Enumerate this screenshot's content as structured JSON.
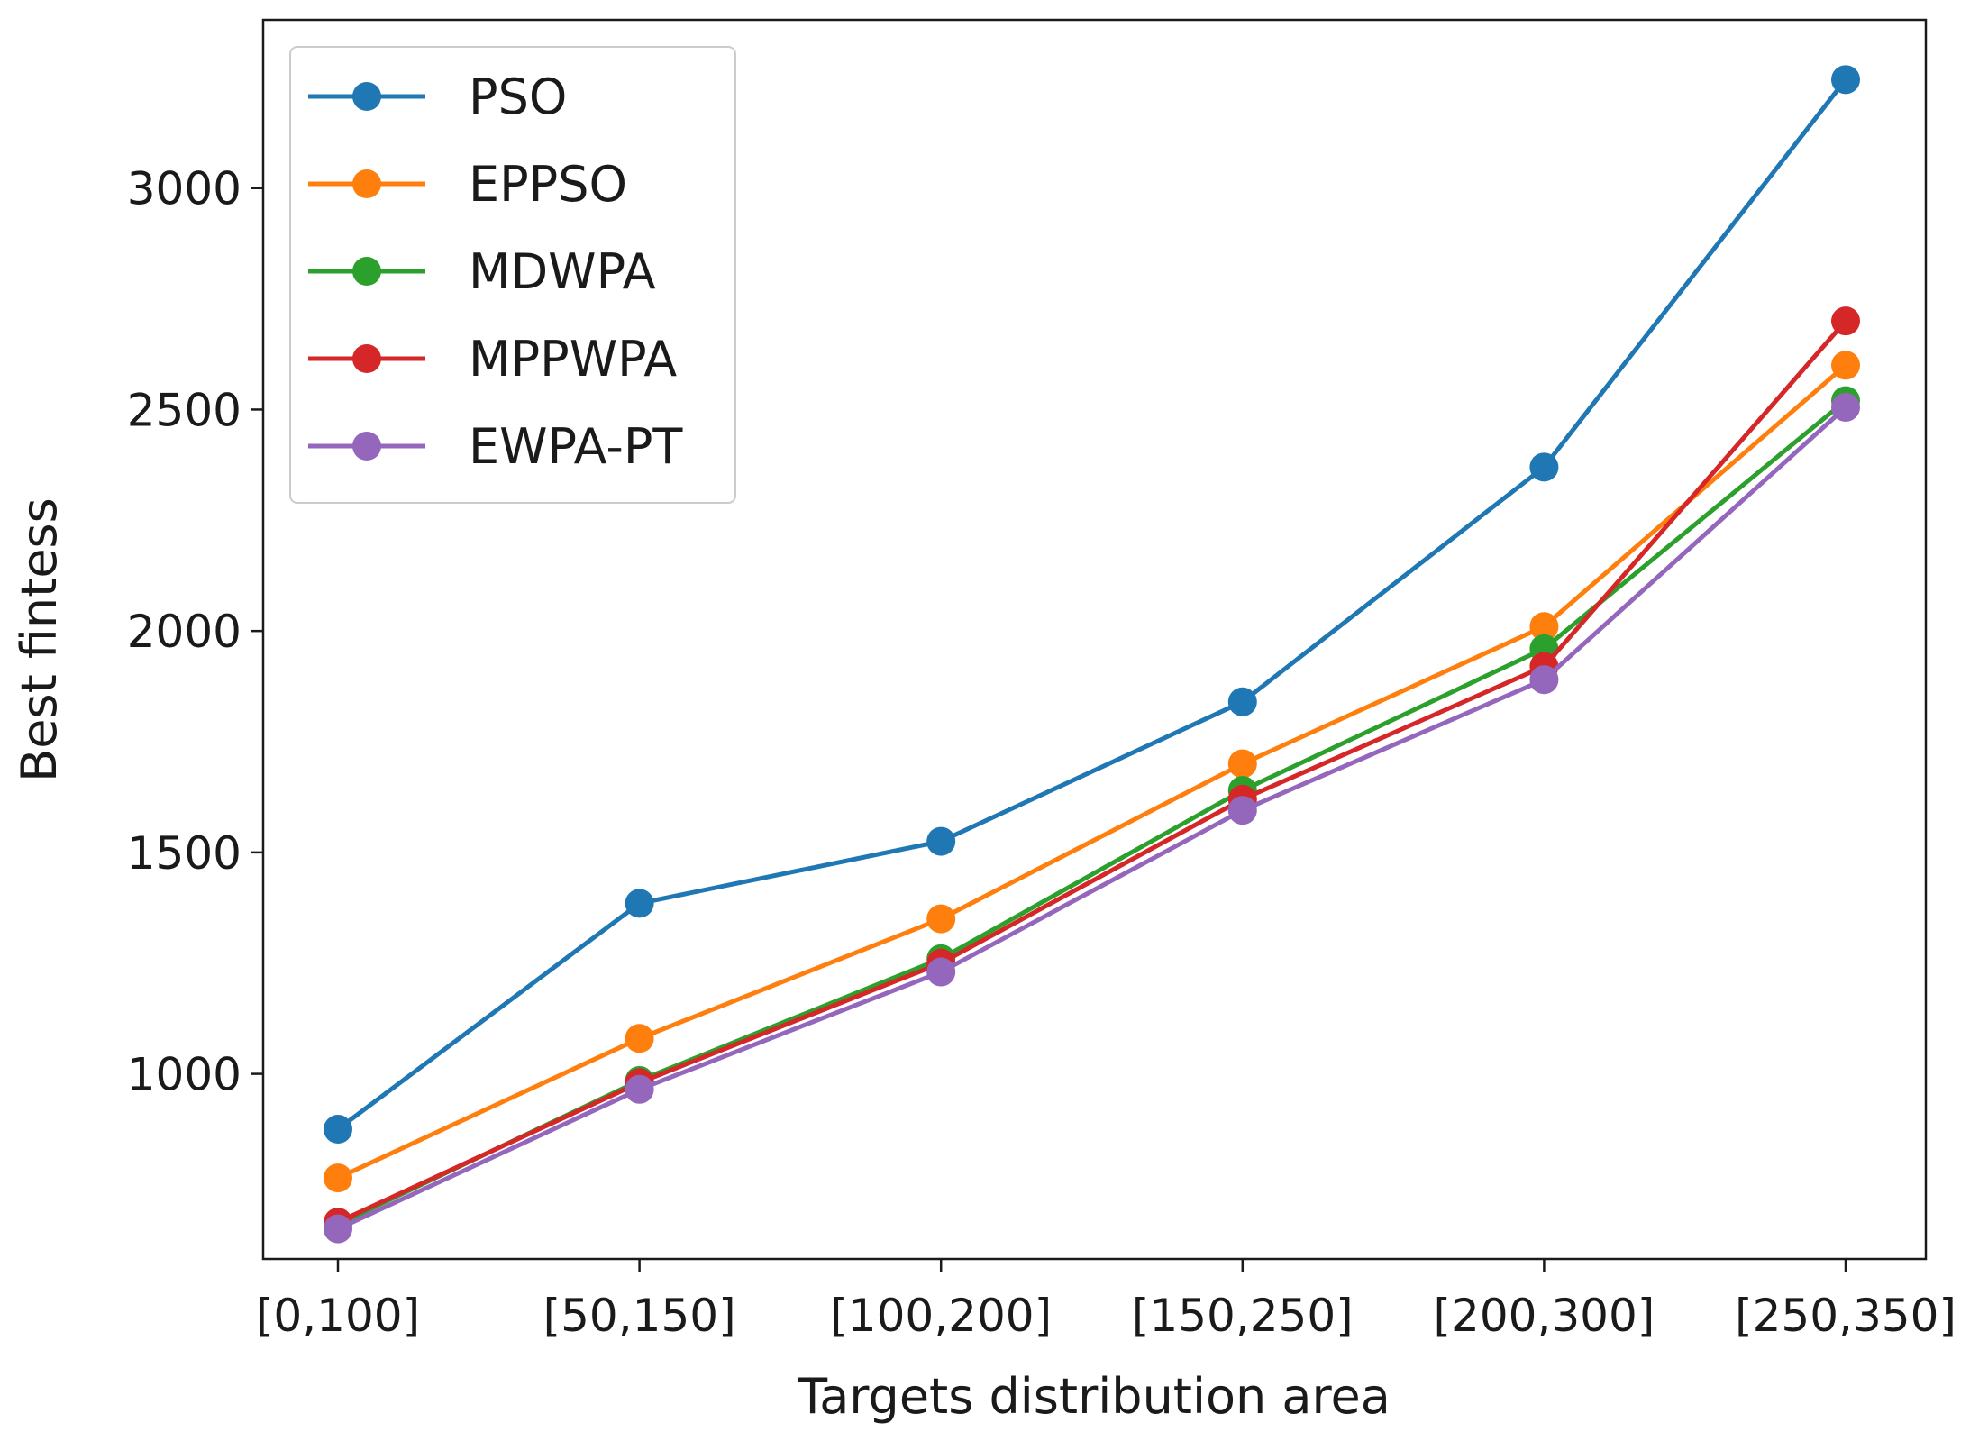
{
  "chart_data": {
    "type": "line",
    "title": "",
    "xlabel": "Targets distribution area",
    "ylabel": "Best fintess",
    "categories": [
      "[0,100]",
      "[50,150]",
      "[100,200]",
      "[150,250]",
      "[200,300]",
      "[250,350]"
    ],
    "ylim": [
      582,
      3380
    ],
    "yticks": [
      1000,
      1500,
      2000,
      2500,
      3000
    ],
    "grid": false,
    "legend_position": "top-left",
    "series": [
      {
        "name": "PSO",
        "color": "#1f77b4",
        "values": [
          875,
          1385,
          1525,
          1840,
          2370,
          3245
        ]
      },
      {
        "name": "EPPSO",
        "color": "#ff7f0e",
        "values": [
          765,
          1080,
          1350,
          1700,
          2010,
          2600
        ]
      },
      {
        "name": "MDWPA",
        "color": "#2ca02c",
        "values": [
          660,
          985,
          1260,
          1640,
          1960,
          2520
        ]
      },
      {
        "name": "MPPWPA",
        "color": "#d62728",
        "values": [
          665,
          980,
          1250,
          1620,
          1920,
          2700
        ]
      },
      {
        "name": "EWPA-PT",
        "color": "#9467bd",
        "values": [
          650,
          965,
          1230,
          1595,
          1890,
          2505
        ]
      }
    ]
  }
}
